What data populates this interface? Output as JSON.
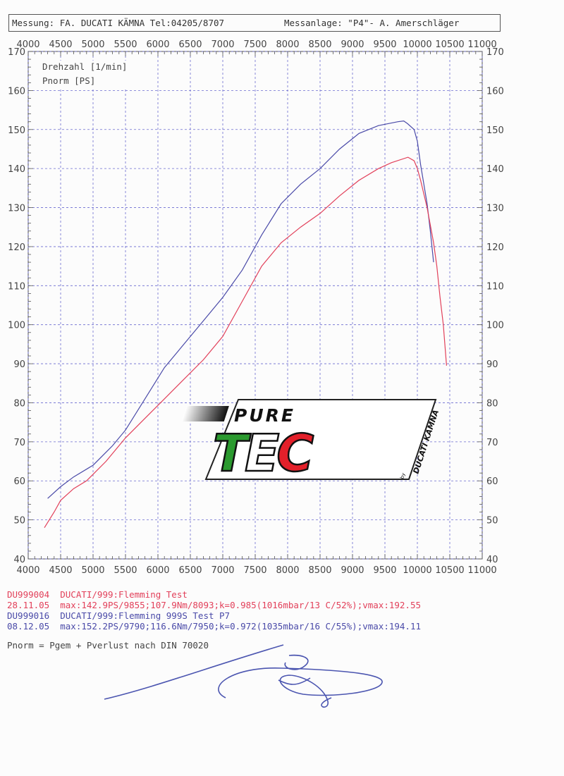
{
  "header": {
    "left": "Messung: FA. DUCATI KÄMNA  Tel:04205/8707",
    "right": "Messanlage: \"P4\"- A. Amerschläger"
  },
  "logo": {
    "pure": "PURE",
    "tec": "TEC",
    "by": "by",
    "brand": "DUCATI KÄMNA"
  },
  "legend": {
    "run1_id": "DU999004  DUCATI/999:Flemming Test",
    "run1_data": "28.11.05  max:142.9PS/9855;107.9Nm/8093;k=0.985(1016mbar/13 C/52%);vmax:192.55",
    "run2_id": "DU999016  DUCATI/999:Flemming 999S Test P7",
    "run2_data": "08.12.05  max:152.2PS/9790;116.6Nm/7950;k=0.972(1035mbar/16 C/55%);vmax:194.11"
  },
  "note": "Pnorm = Pgem + Pverlust nach DIN 70020",
  "chart_data": {
    "type": "line",
    "xlabel": "Drehzahl [1/min]",
    "ylabel": "Pnorm [PS]",
    "xlim": [
      4000,
      11000
    ],
    "ylim": [
      40,
      170
    ],
    "xticks": [
      "4000",
      "4500",
      "5000",
      "5500",
      "6000",
      "6500",
      "7000",
      "7500",
      "8000",
      "8500",
      "9000",
      "9500",
      "10000",
      "10500",
      "11000"
    ],
    "yticks": [
      "40",
      "50",
      "60",
      "70",
      "80",
      "90",
      "100",
      "110",
      "120",
      "130",
      "140",
      "150",
      "160",
      "170"
    ],
    "grid": true,
    "series": [
      {
        "color": "#4a4aa8",
        "x": [
          4300,
          4500,
          4700,
          5000,
          5300,
          5500,
          5800,
          6100,
          6400,
          6700,
          7000,
          7300,
          7600,
          7900,
          8200,
          8500,
          8800,
          9100,
          9400,
          9700,
          9790,
          9850,
          9950,
          10000,
          10050,
          10100,
          10150,
          10200,
          10250
        ],
        "y": [
          55.5,
          58.5,
          61,
          64,
          69,
          73,
          81,
          89,
          95,
          101,
          107,
          114,
          123,
          131,
          136,
          140,
          145,
          149,
          151,
          152,
          152.2,
          151.5,
          150,
          147,
          141,
          136,
          131,
          124,
          116
        ]
      },
      {
        "color": "#e2405a",
        "x": [
          4250,
          4400,
          4500,
          4700,
          4900,
          5200,
          5500,
          5800,
          6100,
          6400,
          6700,
          7000,
          7300,
          7600,
          7900,
          8200,
          8500,
          8800,
          9100,
          9400,
          9600,
          9855,
          9950,
          10000,
          10050,
          10150,
          10250,
          10300,
          10350,
          10400,
          10450
        ],
        "y": [
          48,
          52,
          55,
          58,
          60,
          65,
          71,
          76,
          81,
          86,
          91,
          97,
          106,
          115,
          121,
          125,
          128.5,
          133,
          137,
          140,
          141.5,
          142.9,
          142,
          140,
          137,
          130,
          121,
          115,
          107,
          100,
          89.5
        ]
      }
    ]
  }
}
